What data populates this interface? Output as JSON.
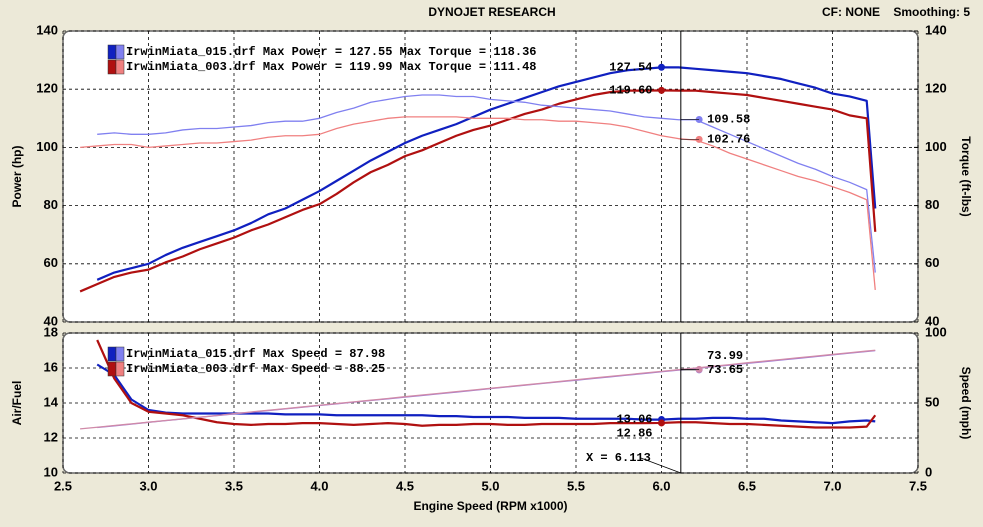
{
  "header": {
    "title": "DYNOJET RESEARCH",
    "cf": "CF: NONE",
    "smoothing": "Smoothing: 5"
  },
  "cursor": {
    "x": 6.113,
    "label": "X = 6.113"
  },
  "chart_data": [
    {
      "type": "line",
      "x": [
        2.6,
        2.7,
        2.8,
        2.9,
        3.0,
        3.1,
        3.2,
        3.3,
        3.4,
        3.5,
        3.6,
        3.7,
        3.8,
        3.9,
        4.0,
        4.1,
        4.2,
        4.3,
        4.4,
        4.5,
        4.6,
        4.7,
        4.8,
        4.9,
        5.0,
        5.1,
        5.2,
        5.3,
        5.4,
        5.5,
        5.6,
        5.7,
        5.8,
        5.9,
        6.0,
        6.1,
        6.2,
        6.3,
        6.4,
        6.5,
        6.6,
        6.7,
        6.8,
        6.9,
        7.0,
        7.1,
        7.2,
        7.25
      ],
      "xlim": [
        2.5,
        7.5
      ],
      "xticks": [
        2.5,
        3,
        3.5,
        4,
        4.5,
        5,
        5.5,
        6,
        6.5,
        7,
        7.5
      ],
      "ylim": [
        40,
        140
      ],
      "yticks": [
        40,
        60,
        80,
        100,
        120,
        140
      ],
      "y2lim": [
        40,
        140
      ],
      "y2ticks": [
        40,
        60,
        80,
        100,
        120,
        140
      ],
      "ylabel": "Power (hp)",
      "y2label": "Torque (ft-lbs)",
      "grid": true,
      "legend": [
        {
          "text": "IrwinMiata_015.drf Max Power = 127.55 Max Torque = 118.36",
          "colors": [
            "#1020c0",
            "#8080f0"
          ]
        },
        {
          "text": "IrwinMiata_003.drf Max Power = 119.99 Max Torque = 111.48",
          "colors": [
            "#b01010",
            "#f08080"
          ]
        }
      ],
      "series": [
        {
          "color": "#1020c0",
          "axis": "y",
          "marker": {
            "x": 6,
            "value": 127.54,
            "label": "127.54"
          },
          "values": [
            null,
            54.5,
            57,
            58.5,
            60,
            63,
            65.5,
            67.5,
            69.5,
            71.5,
            74,
            77,
            79,
            82,
            85,
            88.5,
            92,
            95.5,
            98.5,
            101.5,
            104,
            106,
            108,
            110.5,
            113,
            115,
            117,
            119,
            121,
            122.5,
            124,
            125.5,
            126.5,
            127,
            127.5,
            127.5,
            127,
            126.5,
            126,
            125.5,
            124.5,
            123.5,
            122,
            120.5,
            118.5,
            117.5,
            116,
            79
          ]
        },
        {
          "color": "#b01010",
          "axis": "y",
          "marker": {
            "x": 6,
            "value": 119.6,
            "label": "119.60"
          },
          "values": [
            50.5,
            53,
            55.5,
            57,
            58,
            60.5,
            62.5,
            65,
            67,
            69,
            71.5,
            73.5,
            76,
            78.5,
            80.5,
            84,
            88,
            91.5,
            94,
            97,
            99,
            101.5,
            104,
            106,
            107.5,
            109.5,
            111.5,
            113,
            115,
            116.5,
            118,
            119,
            119.5,
            119.5,
            119.6,
            119.5,
            119.5,
            119,
            118.5,
            118,
            117,
            116,
            115,
            114,
            113,
            111,
            110,
            71
          ]
        },
        {
          "color": "#8080f0",
          "axis": "y2",
          "marker": {
            "x": 6.22,
            "value": 109.58,
            "label": "109.58"
          },
          "values": [
            null,
            104.5,
            105,
            104.5,
            104.5,
            105,
            106,
            106.5,
            106.5,
            107,
            107.5,
            108.5,
            109,
            109,
            110,
            112,
            113.5,
            115.5,
            116.5,
            117.5,
            118,
            118,
            117.5,
            117.5,
            116.5,
            116,
            115.5,
            114.5,
            114,
            113.5,
            113,
            112.5,
            111.5,
            110.5,
            110,
            109.5,
            109.5,
            107,
            104.5,
            102,
            99.5,
            97,
            94.5,
            92.5,
            90,
            88,
            85.5,
            57
          ]
        },
        {
          "color": "#f08080",
          "axis": "y2",
          "marker": {
            "x": 6.22,
            "value": 102.76,
            "label": "102.76"
          },
          "values": [
            100,
            100.5,
            101,
            101,
            100,
            100.5,
            101,
            101.5,
            101.5,
            102,
            102.5,
            103.5,
            104,
            104,
            104.5,
            106.5,
            108,
            109,
            110,
            110.5,
            110.5,
            110.5,
            110.5,
            110,
            110,
            110,
            109.5,
            109.5,
            109,
            109,
            108.5,
            108,
            107,
            105.5,
            104,
            103,
            102.5,
            100.5,
            98,
            96,
            94,
            92,
            90,
            88.5,
            86.5,
            84.5,
            82,
            51
          ]
        }
      ]
    },
    {
      "type": "line",
      "x": [
        2.6,
        2.7,
        2.8,
        2.9,
        3.0,
        3.1,
        3.2,
        3.3,
        3.4,
        3.5,
        3.6,
        3.7,
        3.8,
        3.9,
        4.0,
        4.1,
        4.2,
        4.3,
        4.4,
        4.5,
        4.6,
        4.7,
        4.8,
        4.9,
        5.0,
        5.1,
        5.2,
        5.3,
        5.4,
        5.5,
        5.6,
        5.7,
        5.8,
        5.9,
        6.0,
        6.1,
        6.2,
        6.3,
        6.4,
        6.5,
        6.6,
        6.7,
        6.8,
        6.9,
        7.0,
        7.1,
        7.2,
        7.25
      ],
      "xlim": [
        2.5,
        7.5
      ],
      "xticks": [
        2.5,
        {
          "value": 3,
          "label": "3.0"
        },
        3.5,
        {
          "value": 4,
          "label": "4.0"
        },
        4.5,
        {
          "value": 5,
          "label": "5.0"
        },
        5.5,
        {
          "value": 6,
          "label": "6.0"
        },
        6.5,
        {
          "value": 7,
          "label": "7.0"
        },
        7.5
      ],
      "xlabel": "Engine Speed (RPM x1000)",
      "ylim": [
        10,
        18
      ],
      "yticks": [
        10,
        12,
        14,
        16,
        18
      ],
      "y2lim": [
        0,
        100
      ],
      "y2ticks": [
        0,
        50,
        100
      ],
      "ylabel": "Air/Fuel",
      "y2label": "Speed (mph)",
      "grid": true,
      "legend": [
        {
          "text": "IrwinMiata_015.drf Max Speed = 87.98",
          "colors": [
            "#1020c0",
            "#8080f0"
          ]
        },
        {
          "text": "IrwinMiata_003.drf Max Speed = 88.25",
          "colors": [
            "#b01010",
            "#f08080"
          ]
        }
      ],
      "series": [
        {
          "color": "#1020c0",
          "axis": "y",
          "marker": {
            "x": 6,
            "value": 13.06,
            "label": "13.06"
          },
          "values": [
            null,
            16.2,
            15.6,
            14.2,
            13.6,
            13.45,
            13.4,
            13.4,
            13.4,
            13.4,
            13.4,
            13.4,
            13.35,
            13.35,
            13.35,
            13.3,
            13.3,
            13.3,
            13.3,
            13.3,
            13.3,
            13.25,
            13.25,
            13.2,
            13.2,
            13.2,
            13.15,
            13.15,
            13.15,
            13.1,
            13.1,
            13.1,
            13.1,
            13.05,
            13.05,
            13.1,
            13.1,
            13.15,
            13.15,
            13.1,
            13.1,
            13.0,
            12.95,
            12.9,
            12.85,
            12.95,
            13.0,
            12.95
          ]
        },
        {
          "color": "#b01010",
          "axis": "y",
          "marker": {
            "x": 6,
            "value": 12.86,
            "label": "12.86"
          },
          "values": [
            null,
            17.6,
            15.4,
            14.0,
            13.5,
            13.4,
            13.3,
            13.1,
            12.9,
            12.8,
            12.75,
            12.8,
            12.8,
            12.85,
            12.85,
            12.8,
            12.75,
            12.8,
            12.85,
            12.8,
            12.7,
            12.75,
            12.75,
            12.8,
            12.8,
            12.75,
            12.75,
            12.8,
            12.8,
            12.8,
            12.8,
            12.85,
            12.85,
            12.85,
            12.86,
            12.9,
            12.9,
            12.85,
            12.8,
            12.8,
            12.75,
            12.7,
            12.65,
            12.6,
            12.6,
            12.6,
            12.65,
            13.3
          ]
        },
        {
          "color": "#9a78d8",
          "axis": "y2",
          "marker": {
            "x": 6.22,
            "value": 73.65,
            "label": "73.65"
          },
          "values": [
            null,
            32.5,
            33.7,
            34.9,
            36.2,
            37.4,
            38.6,
            39.8,
            41.0,
            42.2,
            43.4,
            44.6,
            45.8,
            47.0,
            48.2,
            49.4,
            50.6,
            51.8,
            53.0,
            54.2,
            55.4,
            56.6,
            57.8,
            59.0,
            60.3,
            61.5,
            62.7,
            63.9,
            65.1,
            66.3,
            67.5,
            68.7,
            69.9,
            71.1,
            72.3,
            73.5,
            74.7,
            75.9,
            77.1,
            78.3,
            79.5,
            80.7,
            81.9,
            83.1,
            84.4,
            85.6,
            86.8,
            87.4
          ]
        },
        {
          "color": "#d08aa8",
          "axis": "y2",
          "marker": {
            "x": 6.22,
            "value": 73.99,
            "label": "73.99"
          },
          "values": [
            31.5,
            32.7,
            33.9,
            35.1,
            36.3,
            37.5,
            38.7,
            39.9,
            41.1,
            42.4,
            43.6,
            44.8,
            46.0,
            47.2,
            48.4,
            49.6,
            50.8,
            52.0,
            53.2,
            54.5,
            55.7,
            56.9,
            58.1,
            59.3,
            60.5,
            61.7,
            62.9,
            64.1,
            65.3,
            66.6,
            67.8,
            69.0,
            70.2,
            71.4,
            72.6,
            73.8,
            75.0,
            76.2,
            77.4,
            78.7,
            79.9,
            81.1,
            82.3,
            83.5,
            84.7,
            85.9,
            87.1,
            87.7
          ]
        }
      ]
    }
  ]
}
